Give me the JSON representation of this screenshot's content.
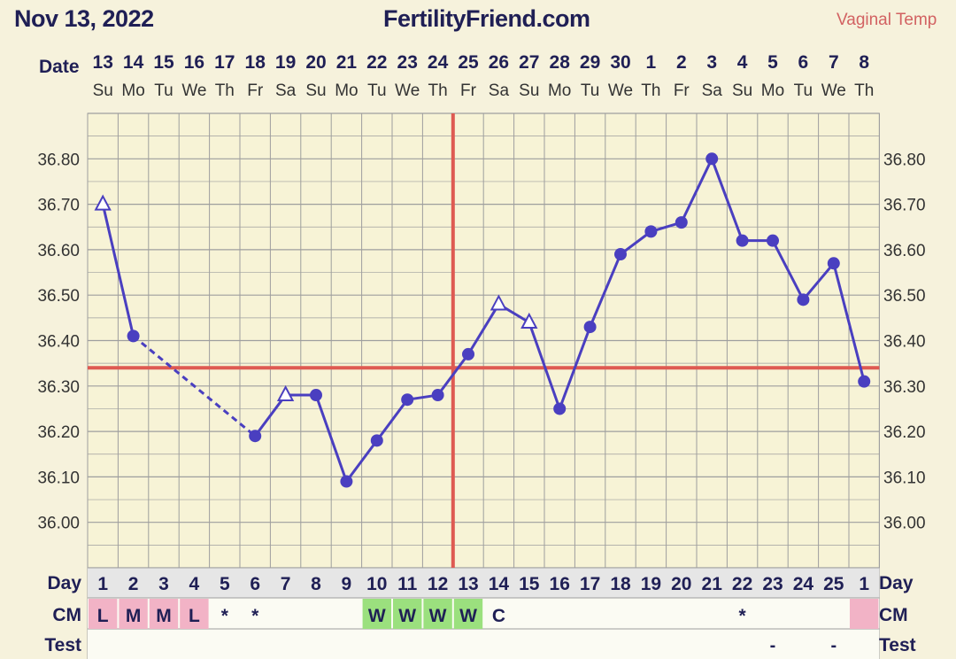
{
  "header": {
    "date": "Nov 13, 2022",
    "site": "FertilityFriend.com",
    "temp_type": "Vaginal Temp"
  },
  "labels": {
    "date": "Date",
    "day": "Day",
    "cm": "CM",
    "test": "Test"
  },
  "colors": {
    "line": "#4a3fc0",
    "coverline": "#de5a52",
    "grid": "#9e9e9e",
    "chart_bg": "#f7f3d6",
    "cm_menstrual": "#f2b3c6",
    "cm_watery": "#9be07e",
    "label_text": "#1f1f55"
  },
  "chart_data": {
    "type": "line",
    "title": "",
    "xlabel": "",
    "ylabel": "",
    "dates": [
      "13",
      "14",
      "15",
      "16",
      "17",
      "18",
      "19",
      "20",
      "21",
      "22",
      "23",
      "24",
      "25",
      "26",
      "27",
      "28",
      "29",
      "30",
      "1",
      "2",
      "3",
      "4",
      "5",
      "6",
      "7",
      "8"
    ],
    "weekdays": [
      "Su",
      "Mo",
      "Tu",
      "We",
      "Th",
      "Fr",
      "Sa",
      "Su",
      "Mo",
      "Tu",
      "We",
      "Th",
      "Fr",
      "Sa",
      "Su",
      "Mo",
      "Tu",
      "We",
      "Th",
      "Fr",
      "Sa",
      "Su",
      "Mo",
      "Tu",
      "We",
      "Th"
    ],
    "cycle_days": [
      "1",
      "2",
      "3",
      "4",
      "5",
      "6",
      "7",
      "8",
      "9",
      "10",
      "11",
      "12",
      "13",
      "14",
      "15",
      "16",
      "17",
      "18",
      "19",
      "20",
      "21",
      "22",
      "23",
      "24",
      "25",
      "1"
    ],
    "temps": [
      36.7,
      36.41,
      null,
      null,
      null,
      36.19,
      36.28,
      36.28,
      36.09,
      36.18,
      36.27,
      36.28,
      36.37,
      36.48,
      36.44,
      36.25,
      36.43,
      36.59,
      36.64,
      36.66,
      36.8,
      36.62,
      36.62,
      36.49,
      36.57,
      36.31
    ],
    "point_style": [
      "open",
      "filled",
      "",
      "",
      "",
      "filled",
      "open",
      "filled",
      "filled",
      "filled",
      "filled",
      "filled",
      "filled",
      "open",
      "open",
      "filled",
      "filled",
      "filled",
      "filled",
      "filled",
      "filled",
      "filled",
      "filled",
      "filled",
      "filled",
      "filled"
    ],
    "connect_after": [
      "solid",
      "dashed",
      "",
      "",
      "",
      "solid",
      "solid",
      "solid",
      "solid",
      "solid",
      "solid",
      "solid",
      "solid",
      "solid",
      "solid",
      "solid",
      "solid",
      "solid",
      "solid",
      "solid",
      "solid",
      "solid",
      "solid",
      "solid",
      "solid",
      ""
    ],
    "y_ticks": [
      "36.80",
      "36.70",
      "36.60",
      "36.50",
      "36.40",
      "36.30",
      "36.20",
      "36.10",
      "36.00"
    ],
    "ylim": [
      35.9,
      36.9
    ],
    "coverline": 36.34,
    "ovulation_day_index": 11,
    "grid": true,
    "cm": [
      "L",
      "M",
      "M",
      "L",
      "*",
      "*",
      "",
      "",
      "",
      "W",
      "W",
      "W",
      "W",
      "C",
      "",
      "",
      "",
      "",
      "",
      "",
      "",
      "*",
      "",
      "",
      "",
      ""
    ],
    "cm_color": [
      "menstrual",
      "menstrual",
      "menstrual",
      "menstrual",
      "",
      "",
      "",
      "",
      "",
      "watery",
      "watery",
      "watery",
      "watery",
      "",
      "",
      "",
      "",
      "",
      "",
      "",
      "",
      "",
      "",
      "",
      "",
      "menstrual"
    ],
    "test": [
      "",
      "",
      "",
      "",
      "",
      "",
      "",
      "",
      "",
      "",
      "",
      "",
      "",
      "",
      "",
      "",
      "",
      "",
      "",
      "",
      "",
      "",
      "-",
      "",
      "-",
      ""
    ]
  }
}
